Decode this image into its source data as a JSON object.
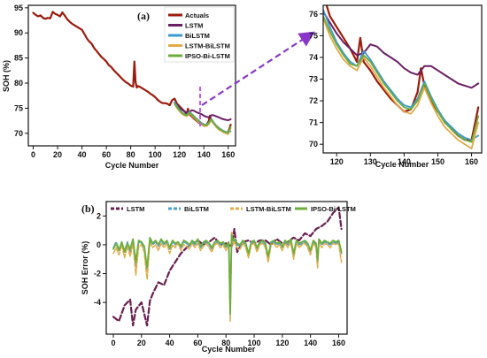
{
  "chart_data": [
    {
      "id": "a_main",
      "type": "line",
      "panel_label": "(a)",
      "xlabel": "Cycle Number",
      "ylabel": "SOH (%)",
      "xlim": [
        -4,
        166
      ],
      "ylim": [
        67.5,
        95.5
      ],
      "xticks": [
        0,
        20,
        40,
        60,
        80,
        100,
        120,
        140,
        160
      ],
      "yticks": [
        70,
        75,
        80,
        85,
        90,
        95
      ],
      "legend_position": "top-right",
      "series": [
        {
          "name": "Actuals",
          "color": "#9b1c0c",
          "width": 2.2,
          "x": [
            0,
            2,
            4,
            6,
            8,
            10,
            12,
            14,
            16,
            18,
            20,
            22,
            24,
            26,
            28,
            30,
            32,
            34,
            36,
            38,
            40,
            42,
            44,
            46,
            48,
            50,
            52,
            54,
            56,
            58,
            60,
            62,
            64,
            66,
            68,
            70,
            72,
            74,
            76,
            78,
            80,
            82,
            83,
            84,
            85,
            86,
            88,
            90,
            92,
            94,
            96,
            98,
            100,
            102,
            104,
            106,
            108,
            110,
            112,
            114,
            116,
            118,
            120,
            122,
            124,
            126,
            127,
            128,
            130,
            132,
            134,
            136,
            138,
            140,
            142,
            144,
            145,
            146,
            148,
            150,
            152,
            154,
            156,
            158,
            160,
            162
          ],
          "y": [
            94.0,
            93.6,
            93.3,
            93.5,
            93.0,
            92.8,
            93.0,
            92.9,
            94.2,
            93.8,
            93.6,
            93.3,
            94.1,
            93.4,
            92.7,
            92.2,
            91.8,
            91.5,
            91.2,
            90.9,
            90.6,
            89.8,
            88.9,
            88.3,
            87.8,
            87.0,
            86.4,
            85.8,
            85.2,
            84.8,
            84.3,
            83.6,
            83.2,
            82.6,
            82.1,
            81.6,
            81.1,
            80.6,
            80.2,
            79.9,
            79.5,
            79.3,
            84.3,
            80.2,
            79.1,
            79.4,
            79.2,
            78.9,
            78.6,
            78.3,
            77.9,
            77.6,
            77.2,
            76.7,
            76.3,
            76.0,
            76.0,
            75.9,
            75.6,
            76.6,
            76.9,
            75.9,
            75.4,
            74.9,
            74.4,
            73.8,
            74.9,
            73.8,
            73.4,
            72.9,
            72.5,
            72.1,
            71.8,
            71.5,
            71.6,
            72.4,
            73.5,
            72.7,
            72.0,
            71.5,
            71.1,
            70.7,
            70.4,
            70.2,
            70.2,
            71.7
          ]
        },
        {
          "name": "LSTM",
          "color": "#6a1f64",
          "width": 2.0,
          "x": [
            116,
            118,
            120,
            122,
            124,
            126,
            128,
            130,
            132,
            134,
            136,
            138,
            140,
            142,
            144,
            146,
            148,
            150,
            152,
            154,
            156,
            158,
            160,
            162
          ],
          "y": [
            76.1,
            75.6,
            75.1,
            74.7,
            74.4,
            74.1,
            74.2,
            74.6,
            74.5,
            74.2,
            74.0,
            73.8,
            73.5,
            73.3,
            73.2,
            73.6,
            73.6,
            73.4,
            73.2,
            73.0,
            72.8,
            72.7,
            72.6,
            72.8
          ]
        },
        {
          "name": "BiLSTM",
          "color": "#3d9ad1",
          "width": 1.8,
          "x": [
            116,
            118,
            120,
            122,
            124,
            126,
            128,
            130,
            132,
            134,
            136,
            138,
            140,
            142,
            144,
            146,
            148,
            150,
            152,
            154,
            156,
            158,
            160,
            162
          ],
          "y": [
            76.2,
            75.4,
            74.7,
            74.2,
            73.8,
            73.6,
            74.3,
            73.9,
            73.4,
            72.9,
            72.5,
            72.1,
            71.8,
            71.7,
            72.1,
            72.9,
            72.2,
            71.6,
            71.1,
            70.8,
            70.5,
            70.3,
            70.2,
            70.4
          ]
        },
        {
          "name": "LSTM-BiLSTM",
          "color": "#e3a94b",
          "width": 1.8,
          "x": [
            116,
            118,
            120,
            122,
            124,
            126,
            128,
            130,
            132,
            134,
            136,
            138,
            140,
            142,
            144,
            146,
            148,
            150,
            152,
            154,
            156,
            158,
            160,
            162
          ],
          "y": [
            75.8,
            75.0,
            74.4,
            73.9,
            73.6,
            73.4,
            74.0,
            73.6,
            73.1,
            72.6,
            72.2,
            71.8,
            71.5,
            71.4,
            71.8,
            72.6,
            71.9,
            71.3,
            70.8,
            70.5,
            70.2,
            70.0,
            69.8,
            71.0
          ]
        },
        {
          "name": "IPSO-Bi-LSTM",
          "color": "#6bac3a",
          "width": 1.8,
          "x": [
            116,
            118,
            120,
            122,
            124,
            126,
            128,
            130,
            132,
            134,
            136,
            138,
            140,
            142,
            144,
            146,
            148,
            150,
            152,
            154,
            156,
            158,
            160,
            162
          ],
          "y": [
            75.9,
            75.2,
            74.6,
            74.1,
            73.7,
            73.6,
            74.1,
            73.8,
            73.3,
            72.8,
            72.4,
            72.0,
            71.7,
            71.6,
            72.0,
            72.8,
            72.1,
            71.5,
            71.0,
            70.7,
            70.4,
            70.2,
            70.1,
            71.3
          ]
        }
      ]
    },
    {
      "id": "a_zoom",
      "type": "line",
      "xlabel": "Cycle Number",
      "ylabel": "",
      "xlim": [
        116,
        163
      ],
      "ylim": [
        69.6,
        76.4
      ],
      "xticks": [
        120,
        130,
        140,
        150,
        160
      ],
      "yticks": [
        70,
        71,
        72,
        73,
        74,
        75,
        76
      ],
      "series_ref": "a_main"
    },
    {
      "id": "b",
      "type": "line",
      "panel_label": "(b)",
      "xlabel": "Cycle Number",
      "ylabel": "SOH Error (%)",
      "xlim": [
        -5,
        166
      ],
      "ylim": [
        -6.2,
        3.0
      ],
      "xticks": [
        0,
        20,
        40,
        60,
        80,
        100,
        120,
        140,
        160
      ],
      "yticks": [
        -4,
        -2,
        0,
        2
      ],
      "legend_position": "top",
      "series": [
        {
          "name": "LSTM",
          "color": "#6a1f4f",
          "width": 2.2,
          "dash": "6,3",
          "x": [
            0,
            4,
            8,
            12,
            14,
            16,
            20,
            24,
            26,
            28,
            32,
            36,
            40,
            44,
            48,
            52,
            56,
            60,
            64,
            68,
            72,
            76,
            80,
            84,
            86,
            88,
            92,
            96,
            100,
            104,
            108,
            112,
            116,
            120,
            124,
            128,
            132,
            136,
            140,
            144,
            148,
            152,
            156,
            160,
            162
          ],
          "y": [
            -5.0,
            -5.3,
            -4.2,
            -3.8,
            -5.6,
            -4.5,
            -4.0,
            -5.6,
            -3.9,
            -3.4,
            -2.6,
            -2.8,
            -1.8,
            -1.2,
            -0.6,
            -0.2,
            0.1,
            0.3,
            0.0,
            0.2,
            0.5,
            0.0,
            0.1,
            -0.1,
            1.1,
            -0.5,
            0.2,
            0.3,
            0.1,
            0.3,
            0.3,
            0.0,
            0.4,
            0.1,
            0.2,
            0.5,
            0.3,
            0.8,
            0.6,
            1.1,
            1.3,
            1.6,
            2.2,
            2.6,
            1.1
          ]
        },
        {
          "name": "BiLSTM",
          "color": "#4a9fd4",
          "width": 1.6,
          "dash": "6,2",
          "x": [
            0,
            2,
            4,
            6,
            8,
            10,
            12,
            14,
            16,
            18,
            20,
            22,
            24,
            26,
            28,
            30,
            32,
            34,
            36,
            38,
            40,
            42,
            44,
            46,
            48,
            50,
            52,
            54,
            56,
            58,
            60,
            62,
            64,
            66,
            68,
            70,
            72,
            74,
            76,
            78,
            80,
            82,
            83,
            84,
            85,
            86,
            88,
            90,
            92,
            94,
            96,
            98,
            100,
            102,
            104,
            106,
            108,
            110,
            112,
            114,
            116,
            118,
            120,
            122,
            124,
            126,
            128,
            130,
            132,
            134,
            136,
            138,
            140,
            142,
            144,
            145,
            146,
            148,
            150,
            152,
            154,
            156,
            158,
            160,
            162
          ],
          "y": [
            -0.2,
            0.2,
            -0.3,
            0.1,
            -0.4,
            0.2,
            -0.5,
            0.3,
            -1.5,
            0.2,
            0.1,
            -0.2,
            -1.9,
            0.4,
            0.0,
            0.2,
            -0.1,
            0.3,
            0.0,
            0.2,
            -0.3,
            0.2,
            0.0,
            0.1,
            -0.2,
            0.2,
            0.1,
            -0.1,
            0.2,
            0.0,
            0.3,
            -0.2,
            0.1,
            0.2,
            0.0,
            -0.3,
            0.1,
            0.2,
            0.0,
            0.1,
            -0.2,
            0.1,
            -4.5,
            0.6,
            0.2,
            0.3,
            0.0,
            -0.1,
            0.2,
            0.0,
            -0.7,
            0.1,
            0.2,
            -0.3,
            0.1,
            0.2,
            0.0,
            -1.0,
            0.1,
            0.2,
            0.0,
            0.1,
            -0.2,
            0.2,
            0.0,
            0.3,
            -0.8,
            0.2,
            0.0,
            0.1,
            0.2,
            0.0,
            -0.5,
            0.2,
            0.0,
            -1.4,
            0.3,
            0.0,
            0.2,
            0.1,
            0.0,
            0.2,
            0.1,
            0.2,
            -0.6
          ]
        },
        {
          "name": "LSTM-BiLSTM",
          "color": "#e3ad48",
          "width": 1.6,
          "dash": "5,2",
          "x": [
            0,
            2,
            4,
            6,
            8,
            10,
            12,
            14,
            16,
            18,
            20,
            22,
            24,
            26,
            28,
            30,
            32,
            34,
            36,
            38,
            40,
            42,
            44,
            46,
            48,
            50,
            52,
            54,
            56,
            58,
            60,
            62,
            64,
            66,
            68,
            70,
            72,
            74,
            76,
            78,
            80,
            82,
            83,
            84,
            85,
            86,
            88,
            90,
            92,
            94,
            96,
            98,
            100,
            102,
            104,
            106,
            108,
            110,
            112,
            114,
            116,
            118,
            120,
            122,
            124,
            126,
            128,
            130,
            132,
            134,
            136,
            138,
            140,
            142,
            144,
            145,
            146,
            148,
            150,
            152,
            154,
            156,
            158,
            160,
            162
          ],
          "y": [
            -0.6,
            -0.2,
            -0.7,
            0.0,
            -0.9,
            -0.1,
            -0.8,
            0.1,
            -2.1,
            -0.1,
            0.0,
            -0.5,
            -2.4,
            0.2,
            -0.2,
            0.0,
            -0.4,
            0.1,
            -0.2,
            0.1,
            -0.6,
            0.0,
            -0.2,
            0.1,
            -0.4,
            0.0,
            -0.1,
            -0.3,
            0.1,
            -0.2,
            0.1,
            -0.4,
            -0.1,
            0.1,
            -0.2,
            -0.5,
            0.0,
            0.1,
            -0.2,
            0.0,
            -0.4,
            0.0,
            -5.3,
            0.9,
            0.0,
            0.2,
            -0.2,
            -0.3,
            0.1,
            -0.2,
            -0.9,
            0.0,
            0.1,
            -0.5,
            0.0,
            0.1,
            -0.2,
            -1.2,
            0.0,
            0.1,
            -0.2,
            0.0,
            -0.4,
            0.1,
            -0.2,
            0.2,
            -1.0,
            0.1,
            -0.2,
            0.0,
            0.1,
            -0.2,
            -0.7,
            0.1,
            -0.2,
            -1.6,
            0.2,
            -0.2,
            0.1,
            0.0,
            -0.2,
            0.1,
            0.0,
            0.1,
            -1.2
          ]
        },
        {
          "name": "IPSO-Bi-LSTM",
          "color": "#6cae3c",
          "width": 1.8,
          "x": [
            0,
            2,
            4,
            6,
            8,
            10,
            12,
            14,
            16,
            18,
            20,
            22,
            24,
            26,
            28,
            30,
            32,
            34,
            36,
            38,
            40,
            42,
            44,
            46,
            48,
            50,
            52,
            54,
            56,
            58,
            60,
            62,
            64,
            66,
            68,
            70,
            72,
            74,
            76,
            78,
            80,
            82,
            83,
            84,
            85,
            86,
            88,
            90,
            92,
            94,
            96,
            98,
            100,
            102,
            104,
            106,
            108,
            110,
            112,
            114,
            116,
            118,
            120,
            122,
            124,
            126,
            128,
            130,
            132,
            134,
            136,
            138,
            140,
            142,
            144,
            145,
            146,
            148,
            150,
            152,
            154,
            156,
            158,
            160,
            162
          ],
          "y": [
            -0.3,
            0.1,
            -0.4,
            0.2,
            -0.5,
            0.1,
            -0.3,
            0.4,
            -1.2,
            0.3,
            0.2,
            -0.1,
            -1.6,
            0.5,
            0.1,
            0.3,
            0.0,
            0.4,
            0.1,
            0.3,
            -0.2,
            0.3,
            0.1,
            0.2,
            -0.1,
            0.3,
            0.2,
            0.0,
            0.3,
            0.1,
            0.4,
            -0.1,
            0.2,
            0.3,
            0.1,
            -0.2,
            0.2,
            0.3,
            0.1,
            0.2,
            -0.1,
            0.2,
            -4.8,
            0.7,
            0.3,
            0.4,
            0.1,
            0.0,
            0.3,
            0.1,
            -0.6,
            0.2,
            0.3,
            -0.2,
            0.2,
            0.3,
            0.1,
            -0.8,
            0.2,
            0.3,
            0.1,
            0.2,
            -0.1,
            0.3,
            0.1,
            0.4,
            -0.6,
            0.3,
            0.1,
            0.2,
            0.3,
            0.1,
            -0.4,
            0.3,
            0.1,
            -1.1,
            0.4,
            0.1,
            0.3,
            0.2,
            0.1,
            0.3,
            0.2,
            0.3,
            -0.5
          ]
        }
      ]
    }
  ]
}
